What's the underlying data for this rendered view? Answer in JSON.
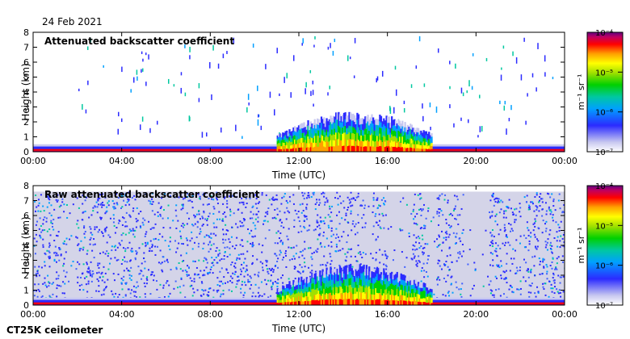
{
  "date_label": "24 Feb 2021",
  "instrument_label": "CT25K ceilometer",
  "chart_data": [
    {
      "type": "heatmap",
      "title": "Attenuated backscatter coefficient",
      "xlabel": "Time (UTC)",
      "ylabel": "Height (km)",
      "x_ticks": [
        "00:00",
        "04:00",
        "08:00",
        "12:00",
        "16:00",
        "20:00",
        "00:00"
      ],
      "y_ticks": [
        0,
        1,
        2,
        3,
        4,
        5,
        6,
        7,
        8
      ],
      "ylim": [
        0,
        8
      ],
      "colorbar": {
        "unit": "m⁻¹ sr⁻¹",
        "ticks": [
          "10⁻⁴",
          "10⁻⁵",
          "10⁻⁶",
          "10⁻⁷"
        ],
        "range": [
          1e-07,
          0.0001
        ],
        "scale": "log"
      },
      "features": {
        "surface_layer_top_km": 0.5,
        "cloud_event_hours_utc": [
          11,
          18
        ],
        "cloud_top_max_km": 2.4,
        "noise": "sparse"
      }
    },
    {
      "type": "heatmap",
      "title": "Raw attenuated backscatter coefficient",
      "xlabel": "Time (UTC)",
      "ylabel": "Height (km)",
      "x_ticks": [
        "00:00",
        "04:00",
        "08:00",
        "12:00",
        "16:00",
        "20:00",
        "00:00"
      ],
      "y_ticks": [
        0,
        1,
        2,
        3,
        4,
        5,
        6,
        7,
        8
      ],
      "ylim": [
        0,
        8
      ],
      "colorbar": {
        "unit": "m⁻¹ sr⁻¹",
        "ticks": [
          "10⁻⁴",
          "10⁻⁵",
          "10⁻⁶",
          "10⁻⁷"
        ],
        "range": [
          1e-07,
          0.0001
        ],
        "scale": "log"
      },
      "features": {
        "surface_layer_top_km": 0.5,
        "cloud_event_hours_utc": [
          11,
          18
        ],
        "cloud_top_max_km": 2.4,
        "noise": "dense",
        "noise_top_km": 7.6
      }
    }
  ]
}
